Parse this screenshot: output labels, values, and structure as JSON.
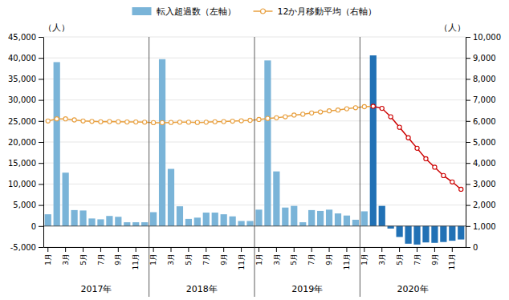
{
  "chart_data": {
    "type": "bar",
    "ylabel": "（人）",
    "y2label": "（人）",
    "categories": [
      "1月",
      null,
      "3月",
      null,
      "5月",
      null,
      "7月",
      null,
      "9月",
      null,
      "11月",
      null,
      "1月",
      null,
      "3月",
      null,
      "5月",
      null,
      "7月",
      null,
      "9月",
      null,
      "11月",
      null,
      "1月",
      null,
      "3月",
      null,
      "5月",
      null,
      "7月",
      null,
      "9月",
      null,
      "11月",
      null,
      "1月",
      null,
      "3月",
      null,
      "5月",
      null,
      "7月",
      null,
      "9月",
      null,
      "11月",
      null
    ],
    "annotations": [
      "2017年",
      "2018年",
      "2019年",
      "2020年"
    ],
    "ylim": [
      -5000,
      45000
    ],
    "yticks": [
      {
        "value": -5000,
        "label": "-5,000"
      },
      0,
      {
        "value": 5000,
        "label": "5,000"
      },
      {
        "value": 10000,
        "label": "10,000"
      },
      {
        "value": 15000,
        "label": "15,000"
      },
      {
        "value": 20000,
        "label": "20,000"
      },
      {
        "value": 25000,
        "label": "25,000"
      },
      {
        "value": 30000,
        "label": "30,000"
      },
      {
        "value": 35000,
        "label": "35,000"
      },
      {
        "value": 40000,
        "label": "40,000"
      },
      {
        "value": 45000,
        "label": "45,000"
      }
    ],
    "y2lim": [
      0,
      10000
    ],
    "y2ticks": [
      0,
      {
        "value": 1000,
        "label": "1,000"
      },
      {
        "value": 2000,
        "label": "2,000"
      },
      {
        "value": 3000,
        "label": "3,000"
      },
      {
        "value": 4000,
        "label": "4,000"
      },
      {
        "value": 5000,
        "label": "5,000"
      },
      {
        "value": 6000,
        "label": "6,000"
      },
      {
        "value": 7000,
        "label": "7,000"
      },
      {
        "value": 8000,
        "label": "8,000"
      },
      {
        "value": 9000,
        "label": "9,000"
      },
      {
        "value": 10000,
        "label": "10,000"
      }
    ],
    "grid": true,
    "legend": "top",
    "series": [
      {
        "name": "転入超過数（左軸）",
        "type": "bar",
        "color": "#7ab4d8",
        "colors": [
          "#7ab4d8",
          "#7ab4d8",
          "#7ab4d8",
          "#7ab4d8",
          "#7ab4d8",
          "#7ab4d8",
          "#7ab4d8",
          "#7ab4d8",
          "#7ab4d8",
          "#7ab4d8",
          "#7ab4d8",
          "#7ab4d8",
          "#7ab4d8",
          "#7ab4d8",
          "#7ab4d8",
          "#7ab4d8",
          "#7ab4d8",
          "#7ab4d8",
          "#7ab4d8",
          "#7ab4d8",
          "#7ab4d8",
          "#7ab4d8",
          "#7ab4d8",
          "#7ab4d8",
          "#7ab4d8",
          "#7ab4d8",
          "#7ab4d8",
          "#7ab4d8",
          "#7ab4d8",
          "#7ab4d8",
          "#7ab4d8",
          "#7ab4d8",
          "#7ab4d8",
          "#7ab4d8",
          "#7ab4d8",
          "#7ab4d8",
          "#7ab4d8",
          "#2171b5",
          "#2171b5",
          "#2171b5",
          "#2171b5",
          "#2171b5",
          "#2171b5",
          "#2171b5",
          "#2171b5",
          "#2171b5",
          "#2171b5",
          "#2171b5"
        ],
        "values": [
          2800,
          39000,
          12700,
          3800,
          3700,
          1800,
          1600,
          2400,
          2200,
          900,
          900,
          900,
          3300,
          39700,
          13600,
          4700,
          1700,
          2000,
          3200,
          3200,
          2800,
          2300,
          1200,
          1200,
          3900,
          39400,
          13000,
          4400,
          4800,
          900,
          3800,
          3600,
          3900,
          3000,
          2500,
          1500,
          3500,
          40600,
          4800,
          -600,
          -2600,
          -4200,
          -4400,
          -3900,
          -4000,
          -3800,
          -3500,
          -3200
        ]
      },
      {
        "name": "12か月移動平均（右軸）",
        "type": "line",
        "axis": "y2",
        "marker": "circle",
        "color": "#e8a040",
        "colors": [
          "#e8a040",
          "#e8a040",
          "#e8a040",
          "#e8a040",
          "#e8a040",
          "#e8a040",
          "#e8a040",
          "#e8a040",
          "#e8a040",
          "#e8a040",
          "#e8a040",
          "#e8a040",
          "#e8a040",
          "#e8a040",
          "#e8a040",
          "#e8a040",
          "#e8a040",
          "#e8a040",
          "#e8a040",
          "#e8a040",
          "#e8a040",
          "#e8a040",
          "#e8a040",
          "#e8a040",
          "#e8a040",
          "#e8a040",
          "#e8a040",
          "#e8a040",
          "#e8a040",
          "#e8a040",
          "#e8a040",
          "#e8a040",
          "#e8a040",
          "#e8a040",
          "#e8a040",
          "#e8a040",
          "#e8a040",
          "#cc0000",
          "#cc0000",
          "#cc0000",
          "#cc0000",
          "#cc0000",
          "#cc0000",
          "#cc0000",
          "#cc0000",
          "#cc0000",
          "#cc0000",
          "#cc0000"
        ],
        "values": [
          6000,
          6100,
          6100,
          6050,
          6000,
          5980,
          5960,
          5970,
          5960,
          5950,
          5950,
          5940,
          5920,
          5920,
          5930,
          5940,
          5940,
          5930,
          5940,
          5960,
          5970,
          5990,
          6010,
          6030,
          6070,
          6120,
          6150,
          6200,
          6280,
          6320,
          6380,
          6430,
          6480,
          6520,
          6580,
          6630,
          6680,
          6700,
          6600,
          6200,
          5700,
          5200,
          4700,
          4200,
          3800,
          3400,
          3100,
          2750
        ]
      }
    ]
  }
}
